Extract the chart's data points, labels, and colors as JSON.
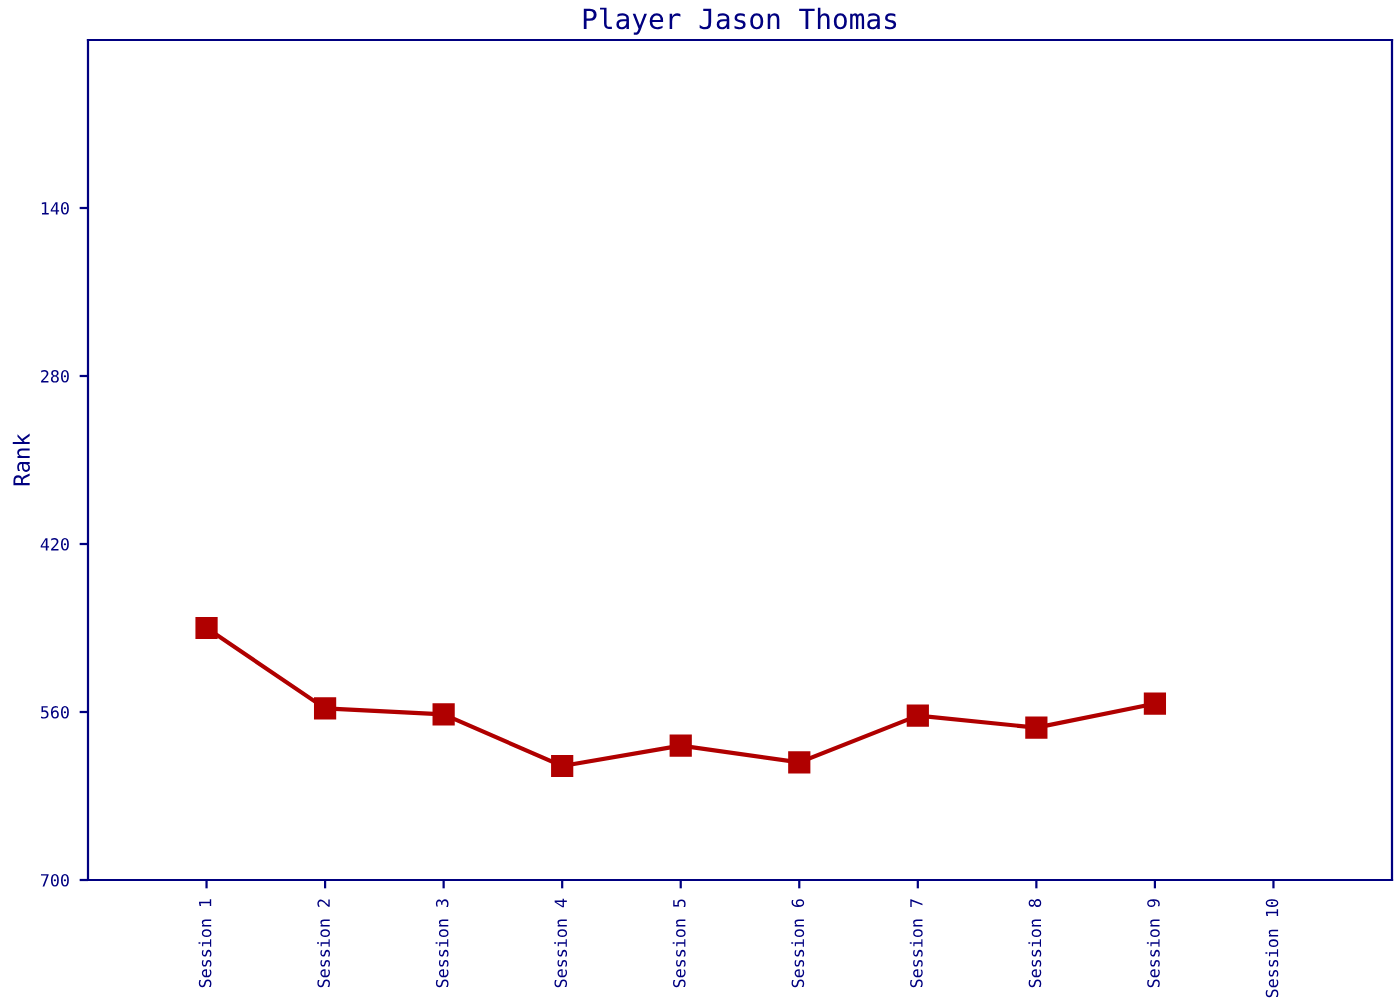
{
  "chart_data": {
    "type": "line",
    "title": "Player Jason Thomas",
    "ylabel": "Rank",
    "categories": [
      "Session 1",
      "Session 2",
      "Session 3",
      "Session 4",
      "Session 5",
      "Session 6",
      "Session 7",
      "Session 8",
      "Session 9",
      "Session 10"
    ],
    "series": [
      {
        "color": "#b00000",
        "values": [
          490,
          557,
          562,
          605,
          588,
          602,
          563,
          573,
          553,
          null
        ]
      }
    ],
    "ylim": [
      700,
      0
    ],
    "yticks": [
      140,
      280,
      420,
      560,
      700
    ],
    "grid": false,
    "legend": false,
    "marker": "square",
    "line_style": "solid"
  }
}
